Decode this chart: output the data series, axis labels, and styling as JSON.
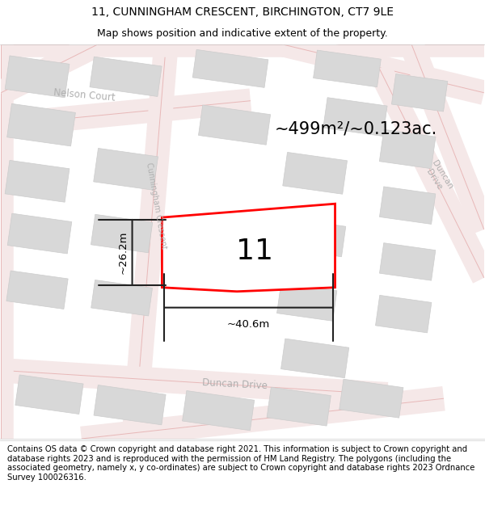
{
  "title_line1": "11, CUNNINGHAM CRESCENT, BIRCHINGTON, CT7 9LE",
  "title_line2": "Map shows position and indicative extent of the property.",
  "footer_text": "Contains OS data © Crown copyright and database right 2021. This information is subject to Crown copyright and database rights 2023 and is reproduced with the permission of HM Land Registry. The polygons (including the associated geometry, namely x, y co-ordinates) are subject to Crown copyright and database rights 2023 Ordnance Survey 100026316.",
  "area_label": "~499m²/~0.123ac.",
  "number_label": "11",
  "width_label": "~40.6m",
  "height_label": "~26.2m",
  "map_bg": "#f2f2f2",
  "plot_border_color": "#ff0000",
  "road_fill_color": "#f5e8e8",
  "road_edge_color": "#e8b8b8",
  "building_color": "#d8d8d8",
  "building_edge": "#cccccc",
  "title_fontsize": 10,
  "subtitle_fontsize": 9,
  "footer_fontsize": 7.2,
  "area_fontsize": 15,
  "number_fontsize": 26,
  "road_label_color": "#b0b0b0",
  "road_label_fontsize": 8.5
}
